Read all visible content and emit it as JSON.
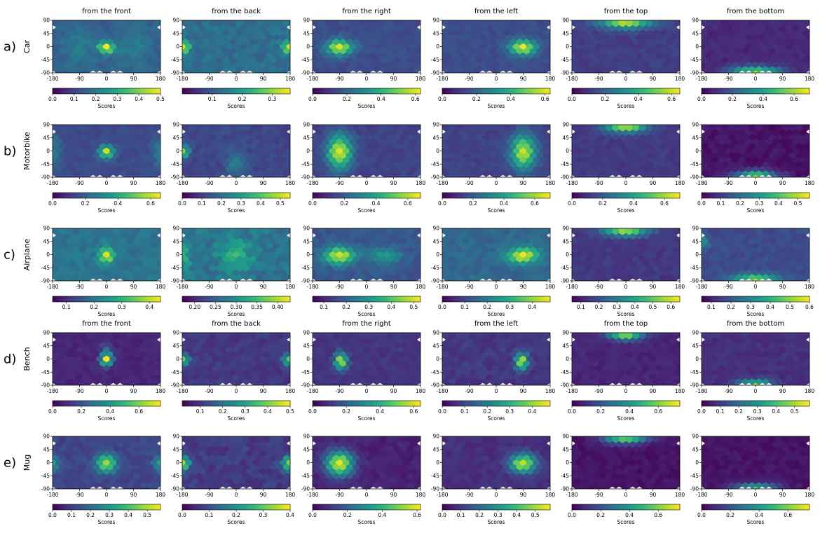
{
  "figure": {
    "column_titles": [
      "from the front",
      "from the back",
      "from the right",
      "from the left",
      "from the top",
      "from the bottom"
    ],
    "rows": [
      {
        "letter": "a)",
        "name": "Car",
        "show_titles": true
      },
      {
        "letter": "b)",
        "name": "Motorbike",
        "show_titles": false
      },
      {
        "letter": "c)",
        "name": "Airplane",
        "show_titles": false
      },
      {
        "letter": "d)",
        "name": "Bench",
        "show_titles": true
      },
      {
        "letter": "e)",
        "name": "Mug",
        "show_titles": false
      }
    ],
    "colormap": "viridis",
    "colormap_stops": [
      "#440154",
      "#482878",
      "#3e4989",
      "#31688e",
      "#26828e",
      "#1f9e89",
      "#35b779",
      "#6ece58",
      "#b5de2b",
      "#fde725"
    ]
  },
  "chart_data": {
    "type": "heatmap",
    "subtype": "hexbin",
    "x_axis": {
      "range": [
        -180,
        180
      ],
      "ticks": [
        "-180",
        "-90",
        "0",
        "90",
        "180"
      ]
    },
    "y_axis": {
      "range": [
        -90,
        90
      ],
      "ticks": [
        "90",
        "45",
        "0",
        "-45",
        "-90"
      ]
    },
    "colorbar_label": "Scores",
    "panels": [
      [
        {
          "ticks": [
            "0.0",
            "0.1",
            "0.2",
            "0.3",
            "0.4",
            "0.5"
          ],
          "cb_min": 0.0,
          "cb_max": 0.5,
          "base": 0.15,
          "hotspots": [
            {
              "lon": 0,
              "lat": 0,
              "amp": 0.34,
              "sx": 18,
              "sy": 14
            },
            {
              "lon": -90,
              "lat": 0,
              "amp": 0.06,
              "sx": 40,
              "sy": 50
            },
            {
              "lon": 90,
              "lat": 0,
              "amp": 0.06,
              "sx": 40,
              "sy": 50
            }
          ]
        },
        {
          "ticks": [
            "0.1",
            "0.2",
            "0.3"
          ],
          "cb_min": 0.0,
          "cb_max": 0.36,
          "base": 0.13,
          "hotspots": [
            {
              "lon": -180,
              "lat": 0,
              "amp": 0.22,
              "sx": 18,
              "sy": 14
            },
            {
              "lon": 180,
              "lat": 0,
              "amp": 0.22,
              "sx": 18,
              "sy": 14
            }
          ]
        },
        {
          "ticks": [
            "0.0",
            "0.2",
            "0.4",
            "0.6"
          ],
          "cb_min": 0.0,
          "cb_max": 0.63,
          "base": 0.15,
          "hotspots": [
            {
              "lon": -90,
              "lat": 0,
              "amp": 0.45,
              "sx": 30,
              "sy": 18
            }
          ]
        },
        {
          "ticks": [
            "0.0",
            "0.2",
            "0.4",
            "0.6"
          ],
          "cb_min": 0.0,
          "cb_max": 0.63,
          "base": 0.15,
          "hotspots": [
            {
              "lon": 90,
              "lat": 0,
              "amp": 0.45,
              "sx": 30,
              "sy": 18
            }
          ]
        },
        {
          "ticks": [
            "0.0",
            "0.2",
            "0.4",
            "0.6"
          ],
          "cb_min": 0.0,
          "cb_max": 0.65,
          "base": 0.12,
          "hotspots": [
            {
              "lon": 0,
              "lat": 90,
              "amp": 0.5,
              "sx": 60,
              "sy": 16
            }
          ]
        },
        {
          "ticks": [
            "0.0",
            "0.2",
            "0.4",
            "0.6"
          ],
          "cb_min": 0.0,
          "cb_max": 0.7,
          "base": 0.08,
          "hotspots": [
            {
              "lon": 0,
              "lat": -90,
              "amp": 0.58,
              "sx": 60,
              "sy": 16
            }
          ]
        }
      ],
      [
        {
          "ticks": [
            "0.0",
            "0.2",
            "0.4",
            "0.6"
          ],
          "cb_min": 0.0,
          "cb_max": 0.66,
          "base": 0.15,
          "hotspots": [
            {
              "lon": 0,
              "lat": 0,
              "amp": 0.45,
              "sx": 16,
              "sy": 16
            },
            {
              "lon": -180,
              "lat": 0,
              "amp": 0.12,
              "sx": 20,
              "sy": 40
            },
            {
              "lon": 180,
              "lat": 0,
              "amp": 0.12,
              "sx": 20,
              "sy": 40
            }
          ]
        },
        {
          "ticks": [
            "0.0",
            "0.1",
            "0.2",
            "0.3",
            "0.4",
            "0.5"
          ],
          "cb_min": 0.0,
          "cb_max": 0.55,
          "base": 0.12,
          "hotspots": [
            {
              "lon": -180,
              "lat": 0,
              "amp": 0.35,
              "sx": 16,
              "sy": 14
            },
            {
              "lon": 0,
              "lat": -40,
              "amp": 0.12,
              "sx": 20,
              "sy": 30
            }
          ]
        },
        {
          "ticks": [
            "0.0",
            "0.2",
            "0.4",
            "0.6"
          ],
          "cb_min": 0.0,
          "cb_max": 0.68,
          "base": 0.14,
          "hotspots": [
            {
              "lon": -90,
              "lat": 0,
              "amp": 0.5,
              "sx": 28,
              "sy": 40
            }
          ]
        },
        {
          "ticks": [
            "0.0",
            "0.2",
            "0.4",
            "0.6"
          ],
          "cb_min": 0.0,
          "cb_max": 0.7,
          "base": 0.14,
          "hotspots": [
            {
              "lon": 90,
              "lat": 0,
              "amp": 0.5,
              "sx": 28,
              "sy": 40
            }
          ]
        },
        {
          "ticks": [
            "0.0",
            "0.2",
            "0.4",
            "0.6"
          ],
          "cb_min": 0.0,
          "cb_max": 0.7,
          "base": 0.12,
          "hotspots": [
            {
              "lon": 0,
              "lat": 90,
              "amp": 0.52,
              "sx": 50,
              "sy": 16
            }
          ]
        },
        {
          "ticks": [
            "0.0",
            "0.1",
            "0.2",
            "0.3",
            "0.4",
            "0.5"
          ],
          "cb_min": 0.0,
          "cb_max": 0.56,
          "base": 0.03,
          "hotspots": [
            {
              "lon": 0,
              "lat": -90,
              "amp": 0.5,
              "sx": 50,
              "sy": 16
            }
          ]
        }
      ],
      [
        {
          "ticks": [
            "0.1",
            "0.2",
            "0.3",
            "0.4"
          ],
          "cb_min": 0.05,
          "cb_max": 0.44,
          "base": 0.2,
          "hotspots": [
            {
              "lon": 0,
              "lat": 0,
              "amp": 0.22,
              "sx": 16,
              "sy": 18
            }
          ]
        },
        {
          "ticks": [
            "0.20",
            "0.25",
            "0.30",
            "0.35",
            "0.40"
          ],
          "cb_min": 0.17,
          "cb_max": 0.43,
          "base": 0.27,
          "hotspots": [
            {
              "lon": 0,
              "lat": 0,
              "amp": 0.06,
              "sx": 40,
              "sy": 40
            },
            {
              "lon": -180,
              "lat": 0,
              "amp": 0.05,
              "sx": 20,
              "sy": 40
            }
          ]
        },
        {
          "ticks": [
            "0.1",
            "0.2",
            "0.3",
            "0.4",
            "0.5"
          ],
          "cb_min": 0.05,
          "cb_max": 0.53,
          "base": 0.18,
          "hotspots": [
            {
              "lon": -90,
              "lat": 0,
              "amp": 0.32,
              "sx": 36,
              "sy": 20
            },
            {
              "lon": 60,
              "lat": 0,
              "amp": 0.12,
              "sx": 40,
              "sy": 20
            }
          ]
        },
        {
          "ticks": [
            "0.0",
            "0.1",
            "0.2",
            "0.3",
            "0.4"
          ],
          "cb_min": 0.0,
          "cb_max": 0.48,
          "base": 0.16,
          "hotspots": [
            {
              "lon": 90,
              "lat": 0,
              "amp": 0.3,
              "sx": 36,
              "sy": 18
            }
          ]
        },
        {
          "ticks": [
            "0.1",
            "0.2",
            "0.3",
            "0.4",
            "0.5",
            "0.6"
          ],
          "cb_min": 0.05,
          "cb_max": 0.65,
          "base": 0.15,
          "hotspots": [
            {
              "lon": 0,
              "lat": 90,
              "amp": 0.45,
              "sx": 50,
              "sy": 16
            }
          ]
        },
        {
          "ticks": [
            "0.1",
            "0.2",
            "0.3",
            "0.4",
            "0.5",
            "0.6"
          ],
          "cb_min": 0.05,
          "cb_max": 0.6,
          "base": 0.18,
          "hotspots": [
            {
              "lon": 0,
              "lat": -90,
              "amp": 0.42,
              "sx": 50,
              "sy": 16
            },
            {
              "lon": -180,
              "lat": 45,
              "amp": 0.15,
              "sx": 16,
              "sy": 16
            }
          ]
        }
      ],
      [
        {
          "ticks": [
            "0.0",
            "0.2",
            "0.4",
            "0.6"
          ],
          "cb_min": 0.0,
          "cb_max": 0.75,
          "base": 0.08,
          "hotspots": [
            {
              "lon": 0,
              "lat": 0,
              "amp": 0.6,
              "sx": 14,
              "sy": 14
            },
            {
              "lon": 0,
              "lat": 30,
              "amp": 0.2,
              "sx": 12,
              "sy": 20
            }
          ]
        },
        {
          "ticks": [
            "0.1",
            "0.2",
            "0.3",
            "0.4",
            "0.5"
          ],
          "cb_min": 0.02,
          "cb_max": 0.5,
          "base": 0.1,
          "hotspots": [
            {
              "lon": -180,
              "lat": 0,
              "amp": 0.3,
              "sx": 16,
              "sy": 14
            },
            {
              "lon": 180,
              "lat": 0,
              "amp": 0.3,
              "sx": 16,
              "sy": 14
            }
          ]
        },
        {
          "ticks": [
            "0.0",
            "0.2",
            "0.4",
            "0.6"
          ],
          "cb_min": 0.0,
          "cb_max": 0.64,
          "base": 0.1,
          "hotspots": [
            {
              "lon": -85,
              "lat": -5,
              "amp": 0.48,
              "sx": 14,
              "sy": 20
            }
          ]
        },
        {
          "ticks": [
            "0.0",
            "0.1",
            "0.2",
            "0.3",
            "0.4"
          ],
          "cb_min": 0.0,
          "cb_max": 0.48,
          "base": 0.08,
          "hotspots": [
            {
              "lon": 85,
              "lat": -5,
              "amp": 0.36,
              "sx": 14,
              "sy": 20
            }
          ]
        },
        {
          "ticks": [
            "0.0",
            "0.2",
            "0.4",
            "0.6"
          ],
          "cb_min": 0.0,
          "cb_max": 0.75,
          "base": 0.08,
          "hotspots": [
            {
              "lon": 0,
              "lat": 90,
              "amp": 0.6,
              "sx": 40,
              "sy": 14
            }
          ]
        },
        {
          "ticks": [
            "0.0",
            "0.1",
            "0.2",
            "0.3",
            "0.4",
            "0.5"
          ],
          "cb_min": 0.0,
          "cb_max": 0.58,
          "base": 0.08,
          "hotspots": [
            {
              "lon": 0,
              "lat": -90,
              "amp": 0.45,
              "sx": 40,
              "sy": 14
            }
          ]
        }
      ],
      [
        {
          "ticks": [
            "0.0",
            "0.1",
            "0.2",
            "0.3",
            "0.4",
            "0.5"
          ],
          "cb_min": 0.0,
          "cb_max": 0.57,
          "base": 0.12,
          "hotspots": [
            {
              "lon": 0,
              "lat": 0,
              "amp": 0.38,
              "sx": 24,
              "sy": 20
            },
            {
              "lon": -180,
              "lat": 0,
              "amp": 0.2,
              "sx": 16,
              "sy": 20
            },
            {
              "lon": 180,
              "lat": 0,
              "amp": 0.2,
              "sx": 16,
              "sy": 20
            }
          ]
        },
        {
          "ticks": [
            "0.0",
            "0.1",
            "0.2",
            "0.3",
            "0.4"
          ],
          "cb_min": 0.0,
          "cb_max": 0.4,
          "base": 0.07,
          "hotspots": [
            {
              "lon": -180,
              "lat": 0,
              "amp": 0.28,
              "sx": 18,
              "sy": 18
            },
            {
              "lon": 180,
              "lat": 0,
              "amp": 0.28,
              "sx": 18,
              "sy": 18
            }
          ]
        },
        {
          "ticks": [
            "0.0",
            "0.2",
            "0.4",
            "0.6"
          ],
          "cb_min": 0.0,
          "cb_max": 0.62,
          "base": 0.06,
          "hotspots": [
            {
              "lon": -90,
              "lat": 0,
              "amp": 0.52,
              "sx": 32,
              "sy": 30
            }
          ]
        },
        {
          "ticks": [
            "0.0",
            "0.1",
            "0.2",
            "0.3",
            "0.4",
            "0.5"
          ],
          "cb_min": 0.0,
          "cb_max": 0.58,
          "base": 0.08,
          "hotspots": [
            {
              "lon": 90,
              "lat": 0,
              "amp": 0.45,
              "sx": 30,
              "sy": 22
            }
          ]
        },
        {
          "ticks": [
            "0.0",
            "0.2",
            "0.4",
            "0.6"
          ],
          "cb_min": 0.0,
          "cb_max": 0.75,
          "base": 0.04,
          "hotspots": [
            {
              "lon": 0,
              "lat": 90,
              "amp": 0.6,
              "sx": 50,
              "sy": 14
            }
          ]
        },
        {
          "ticks": [
            "0.0",
            "0.2",
            "0.4",
            "0.6"
          ],
          "cb_min": 0.0,
          "cb_max": 0.75,
          "base": 0.04,
          "hotspots": [
            {
              "lon": 0,
              "lat": -90,
              "amp": 0.58,
              "sx": 50,
              "sy": 14
            }
          ]
        }
      ]
    ]
  }
}
